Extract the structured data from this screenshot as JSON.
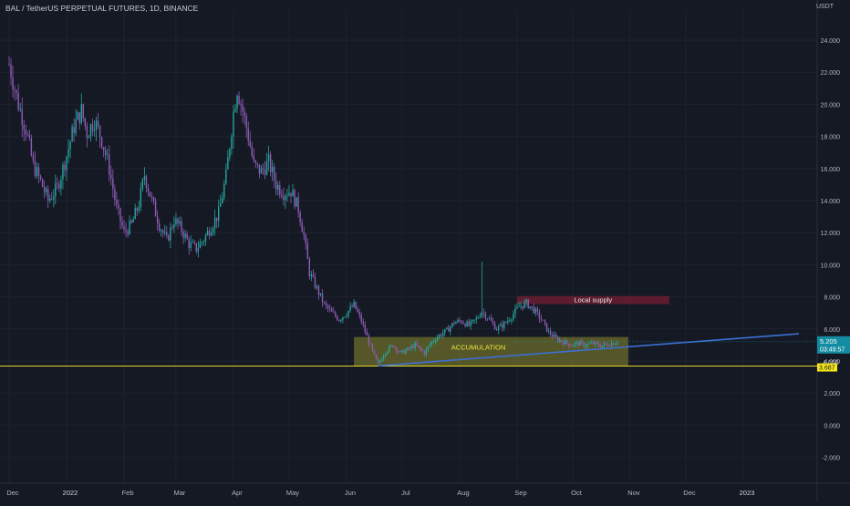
{
  "header": {
    "symbol_line": "BAL / TetherUS PERPETUAL FUTURES, 1D, BINANCE",
    "currency": "USDT"
  },
  "colors": {
    "background": "#151924",
    "grid": "#1e2230",
    "bull": "#26a69a",
    "bear": "#8e5cb8",
    "trendline": "#3d6fd6",
    "support_line": "#e3d823",
    "accumulation_zone": "#8a8a2e",
    "supply_zone": "#6b1f30",
    "price_badge": "#138ba0",
    "support_badge": "#f5e61c"
  },
  "price_scale": {
    "ticks": [
      "24.000",
      "22.000",
      "20.000",
      "18.000",
      "16.000",
      "14.000",
      "12.000",
      "10.000",
      "8.000",
      "6.000",
      "4.000",
      "2.000",
      "0.000",
      "-2.000"
    ]
  },
  "time_scale": {
    "labels": [
      "Dec",
      "2022",
      "Feb",
      "Mar",
      "Apr",
      "May",
      "Jun",
      "Jul",
      "Aug",
      "Sep",
      "Oct",
      "Nov",
      "Dec",
      "2023"
    ]
  },
  "badges": {
    "last_price": "5.205",
    "countdown": "03:49:57",
    "support_level": "3.687",
    "partial_price": "4.000"
  },
  "annotations": {
    "accumulation_label": "ACCUMULATION",
    "supply_label": "Local supply"
  },
  "chart_data": {
    "type": "candlestick",
    "title": "BAL / TetherUS PERPETUAL FUTURES, 1D, BINANCE",
    "y_unit": "USDT",
    "ylim": [
      -3,
      25
    ],
    "x_range": [
      "2021-12-01",
      "2023-01-31"
    ],
    "grid": true,
    "support_level": 3.687,
    "last_price": 5.205,
    "zones": [
      {
        "name": "ACCUMULATION",
        "from": "2022-06-05",
        "to": "2022-10-31",
        "low": 3.7,
        "high": 5.5
      },
      {
        "name": "Local supply",
        "from": "2022-09-01",
        "to": "2022-11-22",
        "low": 7.55,
        "high": 8.05
      }
    ],
    "trendline": {
      "from": [
        "2022-06-18",
        3.7
      ],
      "to": [
        "2023-01-31",
        5.7
      ]
    },
    "price_path": [
      [
        "2021-12-01",
        22.5
      ],
      [
        "2021-12-06",
        20.0
      ],
      [
        "2021-12-10",
        18.5
      ],
      [
        "2021-12-14",
        16.2
      ],
      [
        "2021-12-18",
        15.2
      ],
      [
        "2021-12-22",
        14.0
      ],
      [
        "2021-12-27",
        14.8
      ],
      [
        "2022-01-01",
        16.8
      ],
      [
        "2022-01-05",
        18.6
      ],
      [
        "2022-01-09",
        19.6
      ],
      [
        "2022-01-12",
        18.2
      ],
      [
        "2022-01-16",
        19.0
      ],
      [
        "2022-01-20",
        17.8
      ],
      [
        "2022-01-24",
        16.0
      ],
      [
        "2022-01-28",
        13.5
      ],
      [
        "2022-02-01",
        12.0
      ],
      [
        "2022-02-05",
        12.5
      ],
      [
        "2022-02-09",
        13.8
      ],
      [
        "2022-02-12",
        15.6
      ],
      [
        "2022-02-16",
        14.0
      ],
      [
        "2022-02-20",
        12.5
      ],
      [
        "2022-02-24",
        11.5
      ],
      [
        "2022-02-28",
        12.8
      ],
      [
        "2022-03-04",
        12.2
      ],
      [
        "2022-03-08",
        11.3
      ],
      [
        "2022-03-12",
        11.0
      ],
      [
        "2022-03-16",
        11.6
      ],
      [
        "2022-03-20",
        12.4
      ],
      [
        "2022-03-24",
        13.2
      ],
      [
        "2022-03-28",
        15.5
      ],
      [
        "2022-04-01",
        19.5
      ],
      [
        "2022-04-03",
        21.0
      ],
      [
        "2022-04-06",
        19.6
      ],
      [
        "2022-04-09",
        18.0
      ],
      [
        "2022-04-12",
        16.2
      ],
      [
        "2022-04-16",
        15.8
      ],
      [
        "2022-04-20",
        16.4
      ],
      [
        "2022-04-24",
        15.0
      ],
      [
        "2022-04-28",
        14.5
      ],
      [
        "2022-05-02",
        14.6
      ],
      [
        "2022-05-06",
        13.5
      ],
      [
        "2022-05-09",
        11.8
      ],
      [
        "2022-05-12",
        9.5
      ],
      [
        "2022-05-16",
        8.5
      ],
      [
        "2022-05-20",
        7.5
      ],
      [
        "2022-05-24",
        7.0
      ],
      [
        "2022-05-28",
        6.6
      ],
      [
        "2022-06-01",
        7.0
      ],
      [
        "2022-06-05",
        7.5
      ],
      [
        "2022-06-09",
        6.5
      ],
      [
        "2022-06-13",
        5.2
      ],
      [
        "2022-06-16",
        4.3
      ],
      [
        "2022-06-18",
        3.8
      ],
      [
        "2022-06-22",
        4.6
      ],
      [
        "2022-06-26",
        5.0
      ],
      [
        "2022-06-30",
        4.5
      ],
      [
        "2022-07-04",
        4.7
      ],
      [
        "2022-07-08",
        5.0
      ],
      [
        "2022-07-13",
        4.5
      ],
      [
        "2022-07-17",
        5.2
      ],
      [
        "2022-07-21",
        5.6
      ],
      [
        "2022-07-25",
        5.9
      ],
      [
        "2022-07-29",
        6.4
      ],
      [
        "2022-08-02",
        6.5
      ],
      [
        "2022-08-06",
        6.2
      ],
      [
        "2022-08-10",
        6.6
      ],
      [
        "2022-08-13",
        7.1
      ],
      [
        "2022-08-17",
        6.6
      ],
      [
        "2022-08-21",
        6.0
      ],
      [
        "2022-08-25",
        6.3
      ],
      [
        "2022-08-29",
        6.8
      ],
      [
        "2022-09-02",
        7.4
      ],
      [
        "2022-09-06",
        7.6
      ],
      [
        "2022-09-10",
        7.2
      ],
      [
        "2022-09-14",
        6.6
      ],
      [
        "2022-09-18",
        5.8
      ],
      [
        "2022-09-22",
        5.4
      ],
      [
        "2022-09-26",
        5.2
      ],
      [
        "2022-09-30",
        5.0
      ],
      [
        "2022-10-04",
        5.1
      ],
      [
        "2022-10-08",
        5.0
      ],
      [
        "2022-10-12",
        5.1
      ],
      [
        "2022-10-16",
        4.95
      ],
      [
        "2022-10-20",
        5.05
      ],
      [
        "2022-10-25",
        5.205
      ]
    ],
    "wick_spikes": [
      {
        "date": "2022-08-13",
        "high": 10.2
      }
    ]
  }
}
